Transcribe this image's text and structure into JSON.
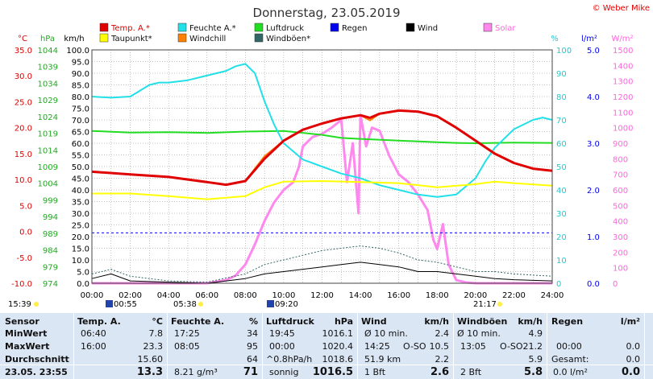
{
  "title": "Donnerstag, 23.05.2019",
  "credit": "© Weber Mike",
  "legend": [
    {
      "label": "Temp. A.*",
      "color": "#e00000"
    },
    {
      "label": "Feuchte A.*",
      "color": "#22e0e8"
    },
    {
      "label": "Luftdruck",
      "color": "#22dd22"
    },
    {
      "label": "Regen",
      "color": "#0000ee"
    },
    {
      "label": "Wind",
      "color": "#000000"
    },
    {
      "label": "Solar",
      "color": "#ff88ee"
    },
    {
      "label": "Taupunkt*",
      "color": "#ffff00"
    },
    {
      "label": "Windchill",
      "color": "#ff7f00"
    },
    {
      "label": "Windböen*",
      "color": "#336666"
    }
  ],
  "axis_units": {
    "temp": "°C",
    "pressure": "hPa",
    "wind": "km/h",
    "humidity": "%",
    "rain": "l/m²",
    "solar": "W/m²"
  },
  "colors": {
    "temp": "#e00000",
    "pressure": "#22dd22",
    "wind": "#000000",
    "humidity": "#22e0e8",
    "rain": "#0000ee",
    "solar": "#ff88ee",
    "dew": "#ffff00",
    "windchill": "#ff7f00",
    "gust": "#336666",
    "grid": "#888888",
    "stats_bg": "#dbe6f5"
  },
  "markers": {
    "sunrise": "05:38",
    "sunset": "21:17",
    "moonrise": "00:55",
    "moonset": "09:20",
    "left": "15:39"
  },
  "chart_data": {
    "type": "line",
    "title": "Donnerstag, 23.05.2019",
    "x_ticks": [
      "00:00",
      "02:00",
      "04:00",
      "06:00",
      "08:00",
      "10:00",
      "12:00",
      "14:00",
      "16:00",
      "18:00",
      "20:00",
      "22:00",
      "24:00"
    ],
    "xlim": [
      0,
      24
    ],
    "axes": {
      "temp": {
        "unit": "°C",
        "range": [
          -10,
          35
        ],
        "ticks": [
          "35.0",
          "30.0",
          "25.0",
          "20.0",
          "15.0",
          "10.0",
          "5.0",
          "0.0",
          "-5.0",
          "-10.0"
        ]
      },
      "pressure": {
        "unit": "hPa",
        "range": [
          974,
          1044
        ],
        "ticks": [
          "1044",
          "1039",
          "1034",
          "1029",
          "1024",
          "1019",
          "1014",
          "1009",
          "1004",
          "999",
          "994",
          "989",
          "984",
          "979",
          "974"
        ]
      },
      "wind": {
        "unit": "km/h",
        "range": [
          0,
          100
        ],
        "ticks": [
          "100.0",
          "95.0",
          "90.0",
          "85.0",
          "80.0",
          "75.0",
          "70.0",
          "65.0",
          "60.0",
          "55.0",
          "50.0",
          "45.0",
          "40.0",
          "35.0",
          "30.0",
          "25.0",
          "20.0",
          "15.0",
          "10.0",
          "5.0",
          "0.0"
        ]
      },
      "humidity": {
        "unit": "%",
        "range": [
          0,
          100
        ],
        "ticks": [
          "100",
          "90",
          "80",
          "70",
          "60",
          "50",
          "40",
          "30",
          "20",
          "10",
          "0"
        ]
      },
      "rain": {
        "unit": "l/m²",
        "range": [
          0,
          5
        ],
        "ticks": [
          "5.0",
          "4.0",
          "3.0",
          "2.0",
          "1.0",
          "0.0"
        ]
      },
      "solar": {
        "unit": "W/m²",
        "range": [
          0,
          1500
        ],
        "ticks": [
          "1500",
          "1400",
          "1300",
          "1200",
          "1100",
          "1000",
          "900",
          "800",
          "700",
          "600",
          "500",
          "400",
          "300",
          "200",
          "100",
          "0"
        ]
      }
    },
    "series": [
      {
        "name": "Temp. A.*",
        "axis": "temp",
        "x": [
          0,
          2,
          4,
          6,
          7,
          8,
          9,
          10,
          11,
          12,
          13,
          14,
          14.5,
          15,
          16,
          17,
          18,
          19,
          20,
          21,
          22,
          23,
          24
        ],
        "y": [
          11.5,
          11.0,
          10.5,
          9.5,
          9.0,
          9.7,
          14.0,
          17.5,
          19.6,
          20.8,
          21.8,
          22.4,
          21.9,
          22.7,
          23.3,
          23.1,
          22.2,
          20.0,
          17.5,
          15.0,
          13.2,
          12.1,
          11.7
        ]
      },
      {
        "name": "Feuchte A.*",
        "axis": "humidity",
        "x": [
          0,
          1,
          2,
          3,
          3.5,
          4,
          5,
          6,
          7,
          7.5,
          8,
          8.5,
          9,
          9.5,
          10,
          11,
          12,
          13,
          14,
          15,
          16,
          17,
          18,
          19,
          20,
          20.5,
          21,
          22,
          23,
          23.5,
          24
        ],
        "y": [
          80,
          79.5,
          80,
          85,
          86,
          86,
          87,
          89,
          91,
          93,
          94,
          90,
          78,
          68,
          60,
          53,
          50,
          47,
          45,
          42,
          40,
          38,
          37,
          38,
          45,
          52,
          58,
          66,
          70,
          71,
          70
        ]
      },
      {
        "name": "Luftdruck",
        "axis": "pressure",
        "x": [
          0,
          2,
          4,
          6,
          8,
          10,
          12,
          13,
          14,
          16,
          18,
          19,
          20,
          22,
          24
        ],
        "y": [
          1019.7,
          1019.2,
          1019.3,
          1019.1,
          1019.5,
          1019.7,
          1018.5,
          1017.6,
          1017.3,
          1016.8,
          1016.3,
          1016.1,
          1016.0,
          1016.2,
          1016.1
        ]
      },
      {
        "name": "Taupunkt*",
        "axis": "temp",
        "x": [
          0,
          2,
          4,
          6,
          8,
          9,
          10,
          12,
          14,
          16,
          18,
          20,
          21,
          22,
          24
        ],
        "y": [
          7.3,
          7.3,
          6.8,
          6.2,
          6.8,
          8.5,
          9.6,
          9.7,
          9.5,
          9.3,
          8.5,
          9.1,
          9.6,
          9.3,
          8.8
        ]
      },
      {
        "name": "Windchill",
        "axis": "temp",
        "x": [
          0,
          2,
          4,
          6,
          7,
          8,
          9,
          10,
          11,
          12,
          13,
          14,
          14.5,
          15,
          16,
          17,
          18,
          19,
          20,
          21,
          22,
          23,
          24
        ],
        "y": [
          11.5,
          11.0,
          10.5,
          9.5,
          9.0,
          9.7,
          14.5,
          17.5,
          19.6,
          20.8,
          21.8,
          22.4,
          21.4,
          22.7,
          23.3,
          23.1,
          22.2,
          20.0,
          17.5,
          15.0,
          13.2,
          12.1,
          11.7
        ]
      },
      {
        "name": "Wind",
        "axis": "wind",
        "x": [
          0,
          1,
          2,
          4,
          6,
          8,
          9,
          10,
          11,
          12,
          13,
          14,
          15,
          16,
          17,
          18,
          19,
          20,
          21,
          22,
          24
        ],
        "y": [
          2,
          4,
          1,
          0.5,
          0,
          2,
          4,
          5,
          6,
          7,
          8,
          9,
          8,
          7,
          5,
          5,
          4,
          3,
          2,
          1.5,
          1
        ]
      },
      {
        "name": "Windböen*",
        "axis": "wind",
        "x": [
          0,
          1,
          2,
          4,
          6,
          8,
          9,
          10,
          11,
          12,
          13,
          14,
          15,
          16,
          17,
          18,
          19,
          20,
          21,
          22,
          24
        ],
        "y": [
          4,
          6,
          3,
          1,
          0.5,
          4,
          8,
          10,
          12,
          14,
          15,
          16,
          15,
          13,
          10,
          9,
          7,
          5,
          5,
          4,
          3
        ]
      },
      {
        "name": "Solar",
        "axis": "solar",
        "x": [
          0,
          6,
          7,
          7.5,
          8,
          8.5,
          9,
          9.5,
          10,
          10.5,
          10.8,
          11,
          11.5,
          12,
          12.5,
          13,
          13.3,
          13.6,
          13.9,
          14,
          14.3,
          14.6,
          15,
          15.5,
          16,
          16.5,
          17,
          17.5,
          17.8,
          18,
          18.3,
          18.6,
          19,
          19.5,
          20,
          21,
          24
        ],
        "y": [
          0,
          0,
          20,
          50,
          120,
          250,
          400,
          520,
          600,
          650,
          750,
          880,
          940,
          960,
          1000,
          1050,
          650,
          900,
          450,
          1080,
          880,
          1000,
          980,
          820,
          700,
          650,
          570,
          470,
          280,
          220,
          380,
          120,
          20,
          5,
          0,
          0,
          0
        ]
      },
      {
        "name": "Regen",
        "axis": "rain",
        "x": [
          0,
          24
        ],
        "y": [
          1.08,
          1.08
        ]
      }
    ]
  },
  "stats": {
    "headers": {
      "sensor": "Sensor",
      "temp": "Temp. A.",
      "temp_unit": "°C",
      "hum": "Feuchte A.",
      "hum_unit": "%",
      "press": "Luftdruck",
      "press_unit": "hPa",
      "wind": "Wind",
      "wind_unit": "km/h",
      "gust": "Windböen",
      "gust_unit": "km/h",
      "rain": "Regen",
      "rain_unit": "l/m²"
    },
    "labels": {
      "min": "MinWert",
      "max": "MaxWert",
      "avg": "Durchschnitt",
      "current": "23.05. 23:55"
    },
    "temp": {
      "min_time": "06:40",
      "min": "7.8",
      "max_time": "16:00",
      "max": "23.3",
      "avg": "15.60",
      "current": "13.3"
    },
    "hum": {
      "min_time": "17:25",
      "min": "34",
      "max_time": "08:05",
      "max": "95",
      "avg": "64",
      "abs": "8.21 g/m³",
      "current": "71"
    },
    "press": {
      "min_time": "19:45",
      "min": "1016.1",
      "max_time": "00:00",
      "max": "1020.4",
      "trend": "^0.8hPa/h",
      "avg": "1018.6",
      "weather": "sonnig",
      "current": "1016.5"
    },
    "wind": {
      "r1_label": "Ø 10 min.",
      "r1_val": "2.4",
      "r2_time": "14:25",
      "r2_dir": "O-SO",
      "r2_val": "10.5",
      "r3_dist": "51.9 km",
      "r3_val": "2.2",
      "r4_bft": "1 Bft",
      "r4_val": "2.6"
    },
    "gust": {
      "r1_label": "Ø 10 min.",
      "r1_val": "4.9",
      "r2_time": "13:05",
      "r2_dir": "O-SO",
      "r2_val": "21.2",
      "r3_val": "5.9",
      "r4_bft": "2 Bft",
      "r4_val": "5.8"
    },
    "rain": {
      "r2_time": "00:00",
      "r2_val": "0.0",
      "r3_label": "Gesamt:",
      "r3_val": "0.0",
      "r4_val": "0.0 l/m²",
      "r4_val2": "0.0"
    }
  }
}
